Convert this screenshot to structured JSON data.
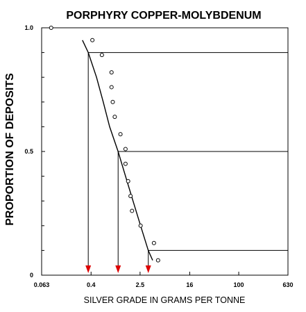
{
  "chart_data": {
    "type": "scatter",
    "title": "PORPHYRY COPPER-MOLYBDENUM",
    "xlabel": "SILVER GRADE IN GRAMS PER TONNE",
    "ylabel": "PROPORTION OF DEPOSITS",
    "x_scale": "log",
    "xlim": [
      0.063,
      630
    ],
    "ylim": [
      0,
      1
    ],
    "x_ticks": [
      {
        "value": 0.063,
        "label": "0.063"
      },
      {
        "value": 0.4,
        "label": "0.4"
      },
      {
        "value": 2.5,
        "label": "2.5"
      },
      {
        "value": 16,
        "label": "16"
      },
      {
        "value": 100,
        "label": "100"
      },
      {
        "value": 630,
        "label": "630"
      }
    ],
    "y_ticks": [
      {
        "value": 0,
        "label": "0"
      },
      {
        "value": 0.5,
        "label": "0.5"
      },
      {
        "value": 1,
        "label": "1.0"
      }
    ],
    "y_minor_ticks": [
      0.1,
      0.2,
      0.3,
      0.4,
      0.6,
      0.7,
      0.8,
      0.9
    ],
    "grid": false,
    "points": [
      {
        "x": 0.09,
        "y": 1.0
      },
      {
        "x": 0.42,
        "y": 0.95
      },
      {
        "x": 0.6,
        "y": 0.89
      },
      {
        "x": 0.86,
        "y": 0.82
      },
      {
        "x": 0.86,
        "y": 0.76
      },
      {
        "x": 0.9,
        "y": 0.7
      },
      {
        "x": 0.97,
        "y": 0.64
      },
      {
        "x": 1.2,
        "y": 0.57
      },
      {
        "x": 1.45,
        "y": 0.51
      },
      {
        "x": 1.45,
        "y": 0.45
      },
      {
        "x": 1.6,
        "y": 0.38
      },
      {
        "x": 1.75,
        "y": 0.32
      },
      {
        "x": 1.85,
        "y": 0.26
      },
      {
        "x": 2.55,
        "y": 0.2
      },
      {
        "x": 4.2,
        "y": 0.13
      },
      {
        "x": 4.9,
        "y": 0.06
      }
    ],
    "fitted_curve": [
      {
        "x": 0.29,
        "y": 0.95
      },
      {
        "x": 0.36,
        "y": 0.9
      },
      {
        "x": 0.49,
        "y": 0.8
      },
      {
        "x": 0.63,
        "y": 0.7
      },
      {
        "x": 0.8,
        "y": 0.6
      },
      {
        "x": 1.1,
        "y": 0.5
      },
      {
        "x": 1.45,
        "y": 0.4
      },
      {
        "x": 1.92,
        "y": 0.3
      },
      {
        "x": 2.55,
        "y": 0.2
      },
      {
        "x": 3.4,
        "y": 0.1
      },
      {
        "x": 4.0,
        "y": 0.06
      }
    ],
    "percentile_markers": [
      {
        "proportion": 0.9,
        "grade": 0.36
      },
      {
        "proportion": 0.5,
        "grade": 1.1
      },
      {
        "proportion": 0.1,
        "grade": 3.4
      }
    ],
    "marker_color": "#dd0000"
  }
}
